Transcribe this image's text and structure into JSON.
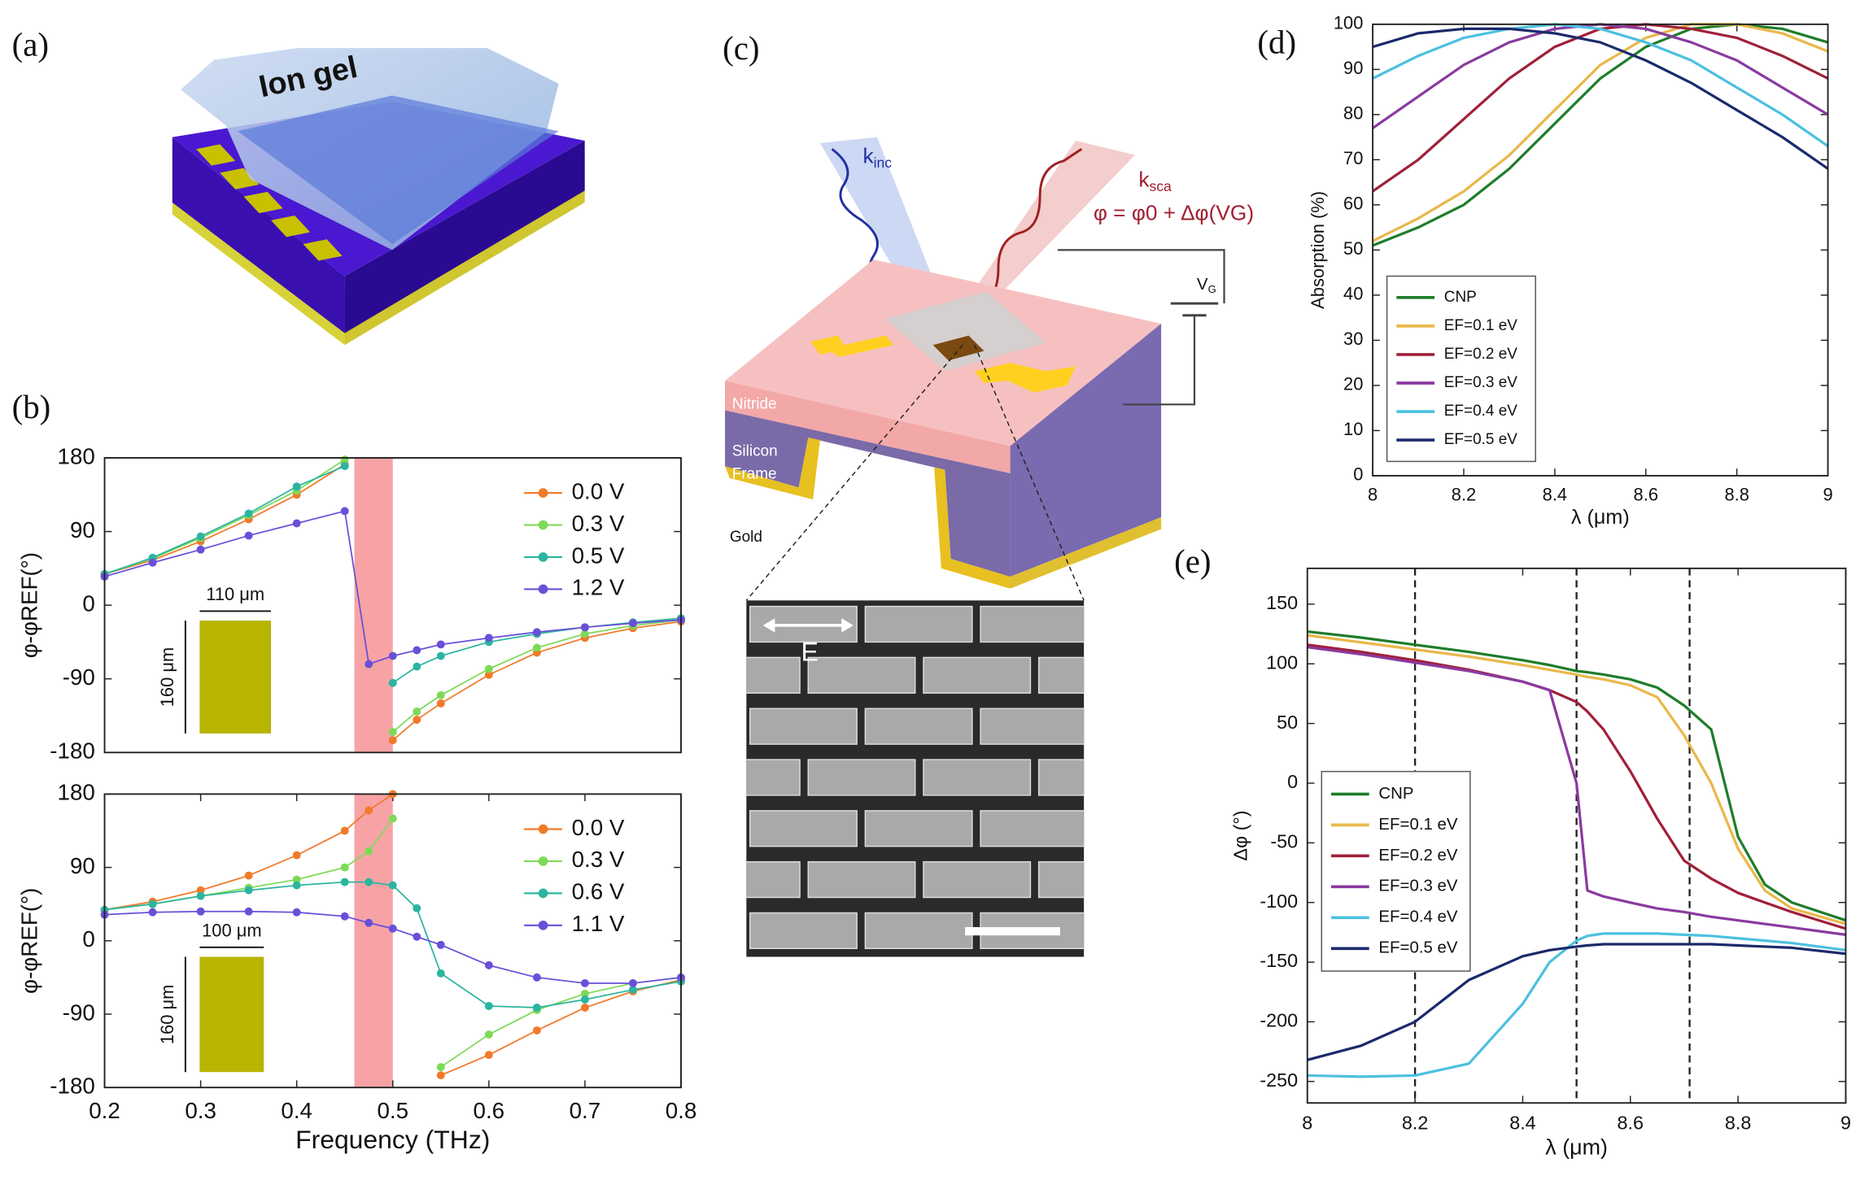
{
  "panel_labels": [
    "(a)",
    "(b)",
    "(c)",
    "(d)",
    "(e)"
  ],
  "diagram_a": {
    "label": "Ion gel"
  },
  "diagram_c": {
    "k_inc": [
      "k",
      "inc"
    ],
    "k_sca": [
      "k",
      "sca"
    ],
    "equation": "φ = φ0 + Δφ(VG)",
    "v_g": [
      "V",
      "G"
    ],
    "nitride": "Nitride",
    "silicon": "Silicon",
    "frame": "Frame",
    "gold": "Gold",
    "field": "E"
  },
  "chart_data": [
    {
      "type": "line",
      "markers": true,
      "ylabel": "φ-φREF(°)",
      "x": [
        0.2,
        0.25,
        0.3,
        0.35,
        0.4,
        0.45,
        0.475,
        0.5,
        0.525,
        0.55,
        0.6,
        0.65,
        0.7,
        0.75,
        0.8
      ],
      "xlim": [
        0.2,
        0.8
      ],
      "ylim": [
        -180,
        180
      ],
      "yticks": [
        -180,
        -90,
        0,
        90,
        180
      ],
      "grid": false,
      "highlight": [
        0.46,
        0.5
      ],
      "highlight_color": "#f7a3a6",
      "legend": "upper right",
      "inset": {
        "width_label": "110 μm",
        "height_label": "160 μm",
        "color": "#b8b400"
      },
      "series": [
        {
          "name": "0.0 V",
          "color": "#f07a2a",
          "values": [
            38,
            55,
            78,
            105,
            135,
            172,
            null,
            -165,
            -140,
            -120,
            -85,
            -58,
            -40,
            -28,
            -20
          ]
        },
        {
          "name": "0.3 V",
          "color": "#7ed957",
          "values": [
            38,
            57,
            82,
            110,
            140,
            178,
            null,
            -155,
            -130,
            -110,
            -78,
            -52,
            -35,
            -25,
            -18
          ]
        },
        {
          "name": "0.5 V",
          "color": "#2bb5a0",
          "values": [
            38,
            58,
            84,
            112,
            145,
            170,
            null,
            -95,
            -75,
            -62,
            -45,
            -35,
            -27,
            -21,
            -16
          ]
        },
        {
          "name": "1.2 V",
          "color": "#6a4fd8",
          "values": [
            35,
            52,
            68,
            85,
            100,
            115,
            -72,
            -62,
            -55,
            -48,
            -40,
            -33,
            -27,
            -22,
            -18
          ]
        }
      ]
    },
    {
      "type": "line",
      "markers": true,
      "ylabel": "φ-φREF(°)",
      "xlabel": "Frequency (THz)",
      "x": [
        0.2,
        0.25,
        0.3,
        0.35,
        0.4,
        0.45,
        0.475,
        0.5,
        0.525,
        0.55,
        0.6,
        0.65,
        0.7,
        0.75,
        0.8
      ],
      "xlim": [
        0.2,
        0.8
      ],
      "xticks": [
        0.2,
        0.3,
        0.4,
        0.5,
        0.6,
        0.7,
        0.8
      ],
      "ylim": [
        -180,
        180
      ],
      "yticks": [
        -180,
        -90,
        0,
        90,
        180
      ],
      "grid": false,
      "highlight": [
        0.46,
        0.5
      ],
      "highlight_color": "#f7a3a6",
      "legend": "upper right",
      "inset": {
        "width_label": "100 μm",
        "height_label": "160 μm",
        "color": "#b8b400"
      },
      "series": [
        {
          "name": "0.0 V",
          "color": "#f07a2a",
          "values": [
            38,
            48,
            62,
            80,
            105,
            135,
            160,
            180,
            null,
            -165,
            -140,
            -110,
            -82,
            -62,
            -48
          ]
        },
        {
          "name": "0.3 V",
          "color": "#7ed957",
          "values": [
            38,
            45,
            55,
            65,
            75,
            90,
            110,
            150,
            null,
            -155,
            -115,
            -85,
            -65,
            -52,
            -45
          ]
        },
        {
          "name": "0.6 V",
          "color": "#2bb5a0",
          "values": [
            38,
            45,
            55,
            62,
            68,
            72,
            72,
            68,
            40,
            -40,
            -80,
            -82,
            -72,
            -60,
            -50
          ]
        },
        {
          "name": "1.1 V",
          "color": "#6a4fd8",
          "values": [
            32,
            35,
            36,
            36,
            35,
            30,
            22,
            15,
            5,
            -5,
            -30,
            -45,
            -52,
            -52,
            -45
          ]
        }
      ]
    },
    {
      "type": "line",
      "markers": false,
      "ylabel": "Absorption (%)",
      "xlabel": "λ (μm)",
      "x": [
        8.0,
        8.1,
        8.2,
        8.3,
        8.4,
        8.5,
        8.6,
        8.7,
        8.8,
        8.9,
        9.0
      ],
      "xlim": [
        8,
        9
      ],
      "xticks": [
        8,
        8.2,
        8.4,
        8.6,
        8.8,
        9
      ],
      "ylim": [
        0,
        100
      ],
      "yticks": [
        0,
        10,
        20,
        30,
        40,
        50,
        60,
        70,
        80,
        90,
        100
      ],
      "grid": false,
      "legend": "lower left",
      "series": [
        {
          "name": "CNP",
          "color": "#1e7d2a",
          "values": [
            51,
            55,
            60,
            68,
            78,
            88,
            95,
            99,
            100,
            99,
            96
          ]
        },
        {
          "name": "EF=0.1 eV",
          "color": "#e8b84a",
          "values": [
            52,
            57,
            63,
            71,
            81,
            91,
            97,
            100,
            100,
            98,
            94
          ]
        },
        {
          "name": "EF=0.2 eV",
          "color": "#a0203a",
          "values": [
            63,
            70,
            79,
            88,
            95,
            99,
            100,
            99,
            97,
            93,
            88
          ]
        },
        {
          "name": "EF=0.3 eV",
          "color": "#8a3aa0",
          "values": [
            77,
            84,
            91,
            96,
            99,
            100,
            99,
            96,
            92,
            86,
            80
          ]
        },
        {
          "name": "EF=0.4 eV",
          "color": "#4cc0e0",
          "values": [
            88,
            93,
            97,
            99,
            100,
            99,
            96,
            92,
            86,
            80,
            73
          ]
        },
        {
          "name": "EF=0.5 eV",
          "color": "#1b2a6b",
          "values": [
            95,
            98,
            99,
            99,
            98,
            96,
            92,
            87,
            81,
            75,
            68
          ]
        }
      ]
    },
    {
      "type": "line",
      "markers": false,
      "ylabel": "Δφ (°)",
      "xlabel": "λ (μm)",
      "x": [
        8.0,
        8.1,
        8.2,
        8.3,
        8.4,
        8.45,
        8.5,
        8.52,
        8.55,
        8.6,
        8.65,
        8.7,
        8.75,
        8.8,
        8.85,
        8.9,
        9.0
      ],
      "xlim": [
        8,
        9
      ],
      "xticks": [
        8,
        8.2,
        8.4,
        8.6,
        8.8,
        9
      ],
      "ylim": [
        -268,
        180
      ],
      "yticks": [
        -250,
        -200,
        -150,
        -100,
        -50,
        0,
        50,
        100,
        150
      ],
      "grid": false,
      "vlines": [
        8.2,
        8.5,
        8.71
      ],
      "legend": "center left",
      "series": [
        {
          "name": "CNP",
          "color": "#1e7d2a",
          "values": [
            127,
            122,
            116,
            110,
            103,
            99,
            94,
            93,
            91,
            87,
            80,
            65,
            45,
            -45,
            -85,
            -100,
            -115
          ]
        },
        {
          "name": "EF=0.1 eV",
          "color": "#e8b84a",
          "values": [
            124,
            118,
            112,
            106,
            99,
            95,
            91,
            89,
            87,
            82,
            72,
            40,
            0,
            -55,
            -90,
            -105,
            -118
          ]
        },
        {
          "name": "EF=0.2 eV",
          "color": "#a0203a",
          "values": [
            116,
            110,
            103,
            95,
            85,
            78,
            68,
            60,
            45,
            10,
            -30,
            -65,
            -80,
            -92,
            -100,
            -108,
            -122
          ]
        },
        {
          "name": "EF=0.3 eV",
          "color": "#8a3aa0",
          "values": [
            114,
            108,
            101,
            94,
            85,
            78,
            0,
            -90,
            -95,
            -100,
            -105,
            -108,
            -112,
            -115,
            -118,
            -121,
            -127
          ]
        },
        {
          "name": "EF=0.4 eV",
          "color": "#4cc0e0",
          "values": [
            -245,
            -246,
            -245,
            -235,
            -185,
            -150,
            -132,
            -128,
            -126,
            -126,
            -126,
            -127,
            -128,
            -130,
            -132,
            -134,
            -140
          ]
        },
        {
          "name": "EF=0.5 eV",
          "color": "#1b2a6b",
          "values": [
            -232,
            -220,
            -200,
            -165,
            -145,
            -140,
            -137,
            -136,
            -135,
            -135,
            -135,
            -135,
            -135,
            -136,
            -137,
            -138,
            -143
          ]
        }
      ]
    }
  ]
}
